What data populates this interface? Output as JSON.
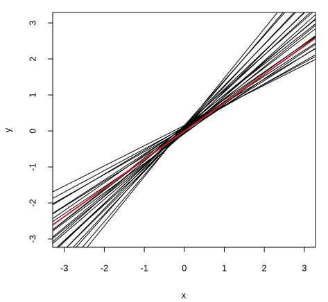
{
  "chart_data": {
    "type": "abline",
    "x_label": "x",
    "y_label": "y",
    "xlim": [
      -3.29,
      3.28
    ],
    "ylim": [
      -3.23,
      3.29
    ],
    "xticks": [
      -3,
      -2,
      -1,
      0,
      1,
      2,
      3
    ],
    "yticks": [
      -3,
      -2,
      -1,
      0,
      1,
      2,
      3
    ],
    "lines": [
      {
        "slope": 0.56,
        "intercept": 0.15,
        "color": "#000000"
      },
      {
        "slope": 0.6,
        "intercept": 0.1,
        "color": "#000000"
      },
      {
        "slope": 0.63,
        "intercept": 0.05,
        "color": "#000000"
      },
      {
        "slope": 0.66,
        "intercept": 0.12,
        "color": "#000000"
      },
      {
        "slope": 0.7,
        "intercept": 0.0,
        "color": "#000000"
      },
      {
        "slope": 0.72,
        "intercept": 0.08,
        "color": "#000000"
      },
      {
        "slope": 0.75,
        "intercept": -0.05,
        "color": "#000000"
      },
      {
        "slope": 0.77,
        "intercept": 0.1,
        "color": "#000000"
      },
      {
        "slope": 0.8,
        "intercept": 0.02,
        "color": "#000000"
      },
      {
        "slope": 0.82,
        "intercept": -0.08,
        "color": "#000000"
      },
      {
        "slope": 0.85,
        "intercept": 0.05,
        "color": "#000000"
      },
      {
        "slope": 0.87,
        "intercept": 0.12,
        "color": "#000000"
      },
      {
        "slope": 0.9,
        "intercept": -0.02,
        "color": "#000000"
      },
      {
        "slope": 0.92,
        "intercept": 0.08,
        "color": "#000000"
      },
      {
        "slope": 0.95,
        "intercept": 0.0,
        "color": "#000000"
      },
      {
        "slope": 0.98,
        "intercept": 0.15,
        "color": "#000000"
      },
      {
        "slope": 1.0,
        "intercept": -0.05,
        "color": "#000000"
      },
      {
        "slope": 1.03,
        "intercept": 0.05,
        "color": "#000000"
      },
      {
        "slope": 1.06,
        "intercept": 0.1,
        "color": "#000000"
      },
      {
        "slope": 1.1,
        "intercept": 0.0,
        "color": "#000000"
      },
      {
        "slope": 1.14,
        "intercept": 0.12,
        "color": "#000000"
      },
      {
        "slope": 1.18,
        "intercept": 0.05,
        "color": "#000000"
      },
      {
        "slope": 1.25,
        "intercept": 0.15,
        "color": "#000000"
      },
      {
        "slope": 1.3,
        "intercept": 0.08,
        "color": "#000000"
      },
      {
        "slope": 1.37,
        "intercept": 0.1,
        "color": "#000000"
      },
      {
        "slope": 0.79,
        "intercept": -0.01,
        "color": "#d01c2a"
      }
    ]
  }
}
